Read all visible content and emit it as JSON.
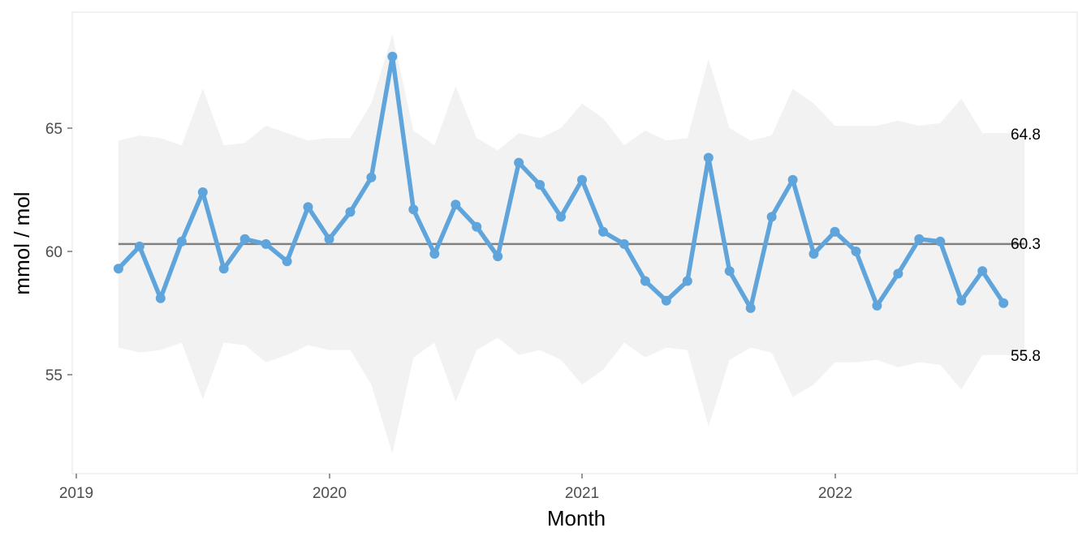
{
  "chart_data": {
    "type": "line",
    "title": "",
    "xlabel": "Month",
    "ylabel": "mmol / mol",
    "x_ticks": [
      "2019",
      "2020",
      "2021",
      "2022"
    ],
    "y_ticks": [
      "55",
      "60",
      "65"
    ],
    "ylim": [
      50.2,
      68.9
    ],
    "xlim": [
      "2019-01",
      "2022-12"
    ],
    "grid": false,
    "legend": "none",
    "x": [
      "2019-03",
      "2019-04",
      "2019-05",
      "2019-06",
      "2019-07",
      "2019-08",
      "2019-09",
      "2019-10",
      "2019-11",
      "2019-12",
      "2020-01",
      "2020-02",
      "2020-03",
      "2020-04",
      "2020-05",
      "2020-06",
      "2020-07",
      "2020-08",
      "2020-09",
      "2020-10",
      "2020-11",
      "2020-12",
      "2021-01",
      "2021-02",
      "2021-03",
      "2021-04",
      "2021-05",
      "2021-06",
      "2021-07",
      "2021-08",
      "2021-09",
      "2021-10",
      "2021-11",
      "2021-12",
      "2022-01",
      "2022-02",
      "2022-03",
      "2022-04",
      "2022-05",
      "2022-06",
      "2022-07",
      "2022-08",
      "2022-09"
    ],
    "series": [
      {
        "values": [
          59.3,
          60.2,
          58.1,
          60.4,
          62.4,
          59.3,
          60.5,
          60.3,
          59.6,
          61.8,
          60.5,
          61.6,
          63.0,
          67.9,
          61.7,
          59.9,
          61.9,
          61.0,
          59.8,
          63.6,
          62.7,
          61.4,
          62.9,
          60.8,
          60.3,
          58.8,
          58.0,
          58.8,
          63.8,
          59.2,
          57.7,
          61.4,
          62.9,
          59.9,
          60.8,
          60.0,
          57.8,
          59.1,
          60.5,
          60.4,
          58.0,
          59.2,
          57.9
        ],
        "color": "#5fa5dc"
      }
    ],
    "limits": {
      "upper": [
        64.5,
        64.7,
        64.6,
        64.3,
        66.6,
        64.3,
        64.4,
        65.1,
        64.8,
        64.5,
        64.6,
        64.6,
        66.0,
        68.8,
        64.9,
        64.3,
        66.7,
        64.6,
        64.1,
        64.8,
        64.6,
        65.0,
        66.0,
        65.4,
        64.3,
        64.9,
        64.5,
        64.6,
        67.8,
        65.0,
        64.5,
        64.7,
        66.6,
        66.0,
        65.1,
        65.1,
        65.1,
        65.3,
        65.1,
        65.2,
        66.2,
        64.8,
        64.8
      ],
      "lower": [
        56.1,
        55.9,
        56.0,
        56.3,
        54.0,
        56.3,
        56.2,
        55.5,
        55.8,
        56.2,
        56.0,
        56.0,
        54.6,
        51.8,
        55.7,
        56.3,
        53.9,
        56.0,
        56.5,
        55.8,
        56.0,
        55.6,
        54.6,
        55.2,
        56.3,
        55.7,
        56.1,
        56.0,
        52.9,
        55.6,
        56.1,
        55.9,
        54.1,
        54.6,
        55.5,
        55.5,
        55.6,
        55.3,
        55.5,
        55.4,
        54.4,
        55.8,
        55.8
      ],
      "band_color": "#f2f2f2"
    },
    "center_line": {
      "value": 60.3,
      "color": "#808080"
    },
    "right_labels": [
      "64.8",
      "60.3",
      "55.8"
    ]
  }
}
